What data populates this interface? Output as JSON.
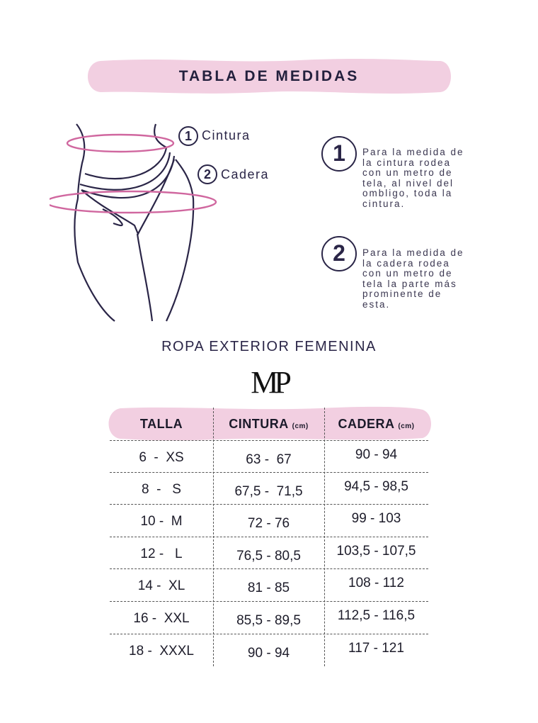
{
  "title": "TABLA DE MEDIDAS",
  "diagram": {
    "labels": [
      {
        "number": "1",
        "text": "Cintura"
      },
      {
        "number": "2",
        "text": "Cadera"
      }
    ]
  },
  "instructions": [
    {
      "number": "1",
      "lines": [
        "Para la medida de",
        "la cintura rodea",
        "con un metro de",
        "tela, al nivel del",
        "ombligo, toda la",
        "cintura."
      ]
    },
    {
      "number": "2",
      "lines": [
        "Para la medida de",
        "la cadera rodea",
        "con un metro de",
        "tela la parte más",
        "prominente de",
        "esta."
      ]
    }
  ],
  "subtitle": "ROPA EXTERIOR FEMENINA",
  "logo": "MP",
  "table": {
    "headers": [
      {
        "label": "TALLA",
        "unit": ""
      },
      {
        "label": "CINTURA",
        "unit": "(cm)"
      },
      {
        "label": "CADERA",
        "unit": "(cm)"
      }
    ],
    "rows": [
      [
        "6  -  XS",
        "63 -  67",
        "90 - 94"
      ],
      [
        "8  -   S",
        "67,5 -  71,5",
        "94,5 - 98,5"
      ],
      [
        "10 -  M",
        "72 - 76",
        "99 - 103"
      ],
      [
        "12 -   L",
        "76,5 - 80,5",
        "103,5 - 107,5"
      ],
      [
        "14 -  XL",
        "81 - 85",
        "108 - 112"
      ],
      [
        "16 -  XXL",
        "85,5 - 89,5",
        "112,5 - 116,5"
      ],
      [
        "18 -  XXXL",
        "90 - 94",
        "117 - 121"
      ]
    ]
  },
  "colors": {
    "pink": "#f2cfe1",
    "navy": "#2a2547",
    "ring": "#d0679f"
  }
}
